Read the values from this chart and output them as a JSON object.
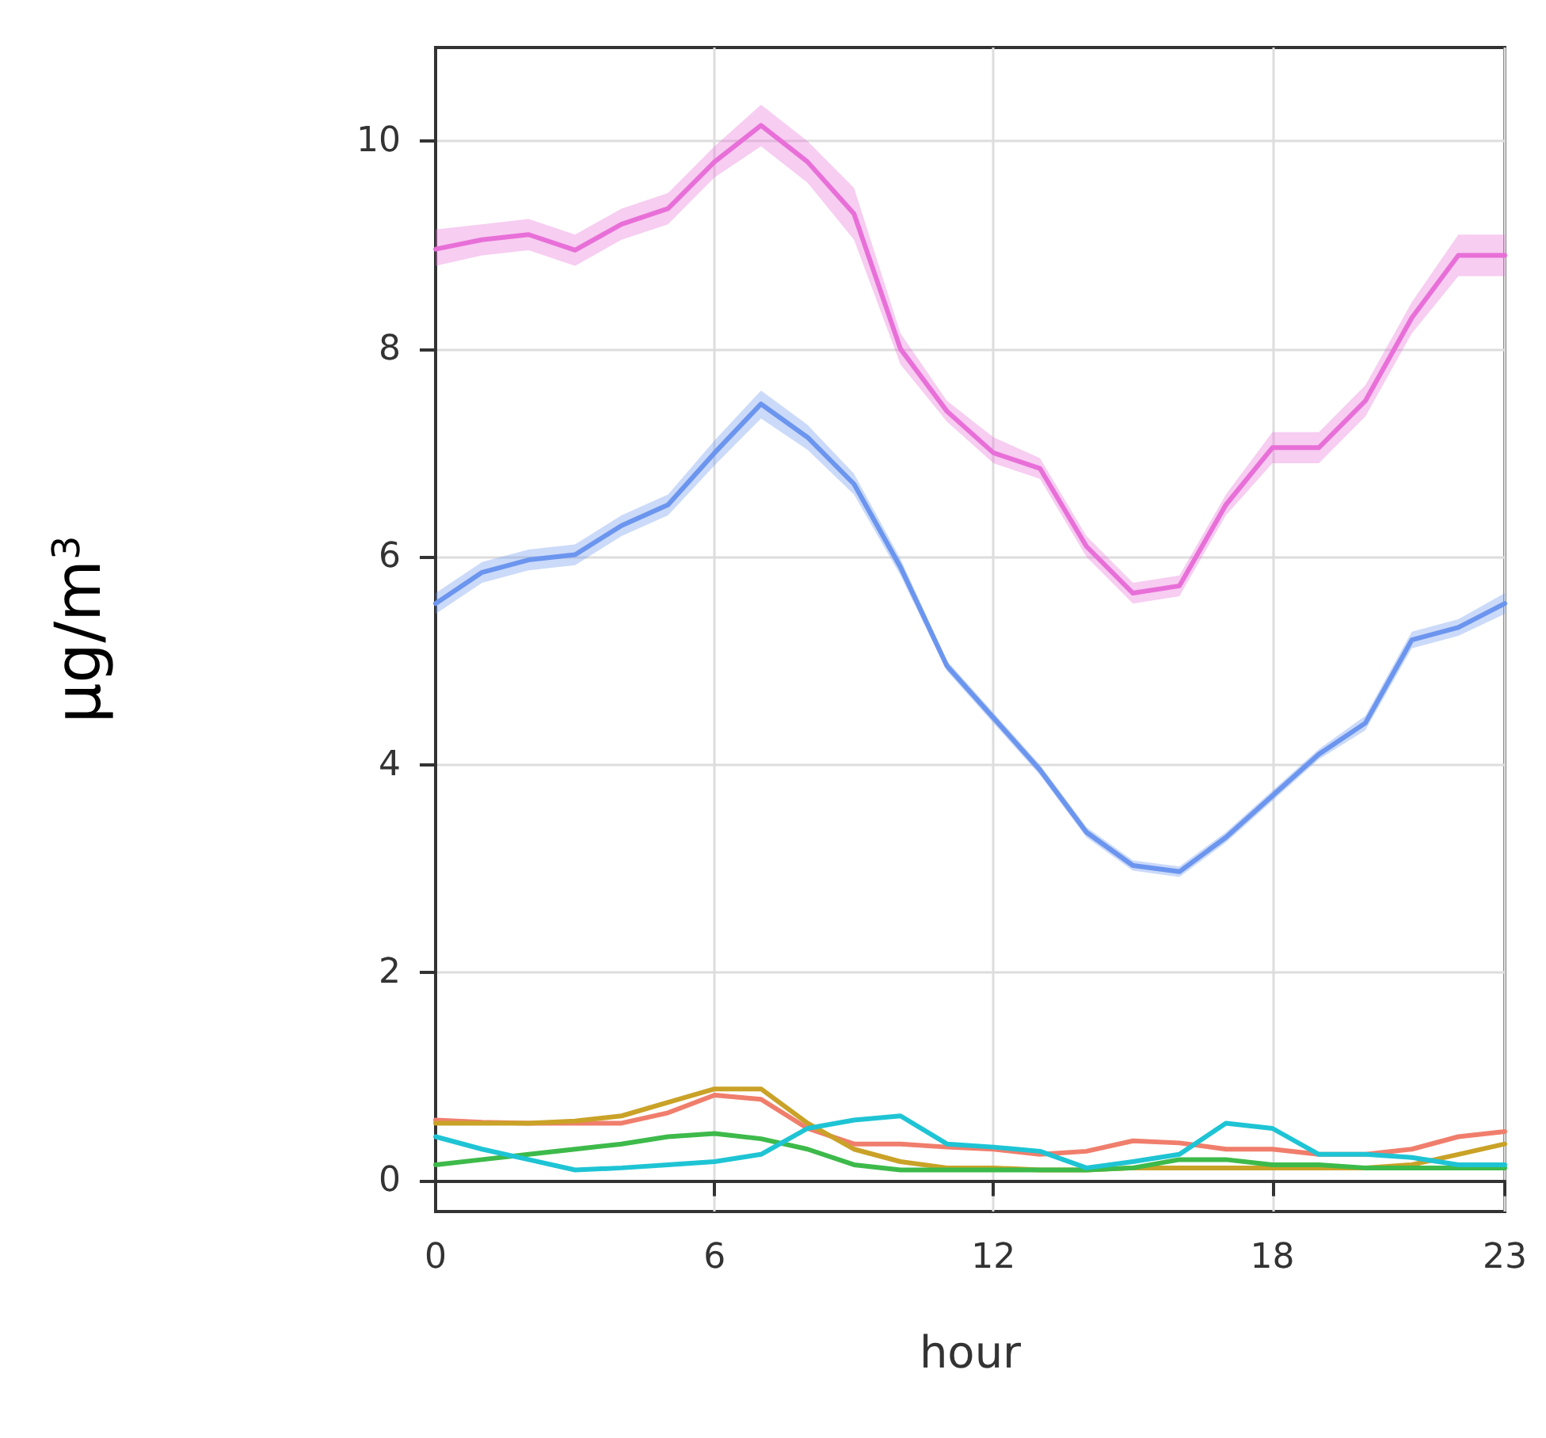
{
  "chart_data": {
    "type": "line",
    "xlabel": "hour",
    "ylabel": "μg/m$^{3}$",
    "x": [
      0,
      1,
      2,
      3,
      4,
      5,
      6,
      7,
      8,
      9,
      10,
      11,
      12,
      13,
      14,
      15,
      16,
      17,
      18,
      19,
      20,
      21,
      22,
      23
    ],
    "xlim": [
      0,
      23
    ],
    "xticks": [
      0,
      6,
      12,
      18,
      23
    ],
    "ylim": [
      -0.3,
      10.9
    ],
    "yticks": [
      0,
      2,
      4,
      6,
      8,
      10
    ],
    "grid": true,
    "line_style": "solid",
    "marker": "none",
    "series": [
      {
        "color": "#e86fd8",
        "values": [
          8.96,
          9.05,
          9.1,
          8.95,
          9.2,
          9.35,
          9.8,
          10.15,
          9.8,
          9.3,
          8.0,
          7.4,
          7.0,
          6.85,
          6.1,
          5.65,
          5.72,
          6.5,
          7.05,
          7.05,
          7.5,
          8.3,
          8.9,
          8.9
        ],
        "lower": [
          8.8,
          8.9,
          8.95,
          8.8,
          9.05,
          9.2,
          9.65,
          9.95,
          9.6,
          9.05,
          7.85,
          7.3,
          6.9,
          6.75,
          6.0,
          5.55,
          5.62,
          6.4,
          6.9,
          6.9,
          7.35,
          8.15,
          8.7,
          8.7
        ],
        "upper": [
          9.15,
          9.2,
          9.25,
          9.1,
          9.35,
          9.5,
          9.95,
          10.35,
          10.0,
          9.55,
          8.15,
          7.5,
          7.15,
          6.95,
          6.2,
          5.75,
          5.82,
          6.6,
          7.2,
          7.2,
          7.65,
          8.45,
          9.1,
          9.1
        ]
      },
      {
        "color": "#6b95ee",
        "values": [
          5.55,
          5.85,
          5.97,
          6.02,
          6.3,
          6.5,
          7.0,
          7.47,
          7.15,
          6.7,
          5.9,
          4.95,
          4.45,
          3.95,
          3.35,
          3.03,
          2.97,
          3.3,
          3.7,
          4.1,
          4.4,
          5.2,
          5.32,
          5.55
        ],
        "lower": [
          5.45,
          5.75,
          5.87,
          5.92,
          6.2,
          6.4,
          6.88,
          7.33,
          7.03,
          6.6,
          5.82,
          4.9,
          4.4,
          3.9,
          3.3,
          2.98,
          2.92,
          3.25,
          3.65,
          4.05,
          4.33,
          5.12,
          5.24,
          5.45
        ],
        "upper": [
          5.65,
          5.95,
          6.07,
          6.12,
          6.4,
          6.6,
          7.12,
          7.6,
          7.27,
          6.8,
          5.98,
          5.0,
          4.5,
          4.0,
          3.4,
          3.08,
          3.02,
          3.35,
          3.75,
          4.15,
          4.47,
          5.28,
          5.4,
          5.65
        ]
      },
      {
        "color": "#f07e6c",
        "values": [
          0.58,
          0.56,
          0.55,
          0.55,
          0.55,
          0.65,
          0.82,
          0.78,
          0.5,
          0.35,
          0.35,
          0.32,
          0.3,
          0.25,
          0.28,
          0.38,
          0.36,
          0.3,
          0.3,
          0.25,
          0.25,
          0.3,
          0.42,
          0.47
        ]
      },
      {
        "color": "#c9a227",
        "values": [
          0.55,
          0.55,
          0.55,
          0.57,
          0.62,
          0.75,
          0.88,
          0.88,
          0.55,
          0.3,
          0.18,
          0.12,
          0.12,
          0.1,
          0.1,
          0.12,
          0.12,
          0.12,
          0.12,
          0.12,
          0.12,
          0.15,
          0.25,
          0.35
        ]
      },
      {
        "color": "#3dba4a",
        "values": [
          0.15,
          0.2,
          0.25,
          0.3,
          0.35,
          0.42,
          0.45,
          0.4,
          0.3,
          0.15,
          0.1,
          0.1,
          0.1,
          0.1,
          0.1,
          0.12,
          0.2,
          0.2,
          0.15,
          0.15,
          0.12,
          0.12,
          0.12,
          0.12
        ]
      },
      {
        "color": "#1ec4d4",
        "values": [
          0.42,
          0.3,
          0.2,
          0.1,
          0.12,
          0.15,
          0.18,
          0.25,
          0.5,
          0.58,
          0.62,
          0.35,
          0.32,
          0.28,
          0.12,
          0.18,
          0.25,
          0.55,
          0.5,
          0.25,
          0.25,
          0.22,
          0.15,
          0.15
        ]
      }
    ]
  }
}
